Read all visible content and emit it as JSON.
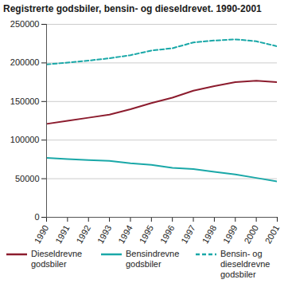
{
  "chart_data": {
    "type": "line",
    "title": "Registrerte godsbiler, bensin- og dieseldrevet. 1990-2001",
    "x": [
      1990,
      1991,
      1992,
      1993,
      1994,
      1995,
      1996,
      1997,
      1998,
      1999,
      2000,
      2001
    ],
    "series": [
      {
        "name": "Dieseldrevne godsbiler",
        "color": "#8c1c2e",
        "line_style": "solid",
        "values": [
          121000,
          125000,
          129000,
          133000,
          140000,
          148000,
          155000,
          164000,
          170000,
          175000,
          177000,
          175000
        ]
      },
      {
        "name": "Bensindrevne godsbiler",
        "color": "#1aa8a8",
        "line_style": "solid",
        "values": [
          77000,
          75500,
          74000,
          73000,
          70000,
          68000,
          64000,
          62500,
          59000,
          55500,
          51000,
          46500
        ]
      },
      {
        "name": "Bensin- og dieseldrevne godsbiler",
        "color": "#1aa8a8",
        "line_style": "dashed",
        "values": [
          198000,
          200500,
          203000,
          206000,
          210000,
          216000,
          219000,
          226500,
          229000,
          230500,
          228000,
          221500
        ]
      }
    ],
    "xlim": [
      1990,
      2001
    ],
    "xticks": [
      1990,
      1991,
      1992,
      1993,
      1994,
      1995,
      1996,
      1997,
      1998,
      1999,
      2000,
      2001
    ],
    "ylim": [
      0,
      250000
    ],
    "yticks": [
      0,
      50000,
      100000,
      150000,
      200000,
      250000
    ],
    "grid": true,
    "legend": "bottom"
  }
}
